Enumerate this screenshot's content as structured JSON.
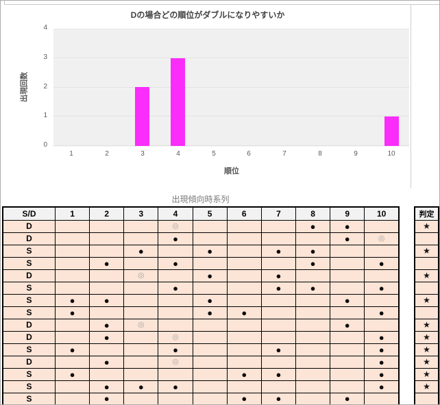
{
  "chart_data": {
    "type": "bar",
    "title": "Dの場合どの順位がダブルになりやすいか",
    "categories": [
      "1",
      "2",
      "3",
      "4",
      "5",
      "6",
      "7",
      "8",
      "9",
      "10"
    ],
    "values": [
      0,
      0,
      2,
      3,
      0,
      0,
      0,
      0,
      0,
      1
    ],
    "xlabel": "順位",
    "ylabel": "出現回数",
    "ylim": [
      0,
      4
    ],
    "yticks": [
      0,
      1,
      2,
      3,
      4
    ],
    "grid": "horizontal",
    "legend": "none"
  },
  "colors": {
    "bar": "#FA2DFA",
    "plot_background": "#F0F0F0",
    "table_row_background": "#FCE4D6",
    "table_header_background": "#F2F2F2",
    "chart_text": "#595959"
  },
  "symbols": {
    "filled_dot": "●",
    "double_circle": "◎",
    "star": "★"
  },
  "table": {
    "title": "出現傾向時系列",
    "columns": [
      "S/D",
      "1",
      "2",
      "3",
      "4",
      "5",
      "6",
      "7",
      "8",
      "9",
      "10"
    ],
    "judge_header": "判定",
    "rows": [
      {
        "sd": "D",
        "cells": [
          "",
          "",
          "",
          "◎",
          "",
          "",
          "",
          "●",
          "●",
          ""
        ],
        "judge": "★"
      },
      {
        "sd": "D",
        "cells": [
          "",
          "",
          "",
          "●",
          "",
          "",
          "",
          "",
          "●",
          "◎"
        ],
        "judge": ""
      },
      {
        "sd": "S",
        "cells": [
          "",
          "",
          "●",
          "",
          "●",
          "",
          "●",
          "●",
          "",
          ""
        ],
        "judge": "★"
      },
      {
        "sd": "S",
        "cells": [
          "",
          "●",
          "",
          "●",
          "",
          "",
          "",
          "●",
          "",
          "●"
        ],
        "judge": ""
      },
      {
        "sd": "D",
        "cells": [
          "",
          "",
          "◎",
          "",
          "●",
          "",
          "●",
          "",
          "",
          ""
        ],
        "judge": "★"
      },
      {
        "sd": "S",
        "cells": [
          "",
          "",
          "",
          "●",
          "",
          "",
          "●",
          "●",
          "",
          "●"
        ],
        "judge": ""
      },
      {
        "sd": "S",
        "cells": [
          "●",
          "●",
          "",
          "",
          "●",
          "",
          "",
          "",
          "●",
          ""
        ],
        "judge": "★"
      },
      {
        "sd": "S",
        "cells": [
          "●",
          "",
          "",
          "",
          "●",
          "●",
          "",
          "",
          "",
          "●"
        ],
        "judge": ""
      },
      {
        "sd": "D",
        "cells": [
          "",
          "●",
          "◎",
          "",
          "",
          "",
          "",
          "",
          "●",
          ""
        ],
        "judge": "★"
      },
      {
        "sd": "D",
        "cells": [
          "",
          "●",
          "",
          "◎",
          "",
          "",
          "",
          "",
          "",
          "●"
        ],
        "judge": "★"
      },
      {
        "sd": "S",
        "cells": [
          "●",
          "",
          "",
          "●",
          "",
          "",
          "●",
          "",
          "",
          "●"
        ],
        "judge": "★"
      },
      {
        "sd": "D",
        "cells": [
          "",
          "●",
          "",
          "◎",
          "",
          "",
          "",
          "",
          "",
          "●"
        ],
        "judge": "★"
      },
      {
        "sd": "S",
        "cells": [
          "●",
          "",
          "",
          "",
          "",
          "●",
          "●",
          "",
          "",
          "●"
        ],
        "judge": "★"
      },
      {
        "sd": "S",
        "cells": [
          "",
          "●",
          "●",
          "●",
          "",
          "",
          "",
          "",
          "",
          "●"
        ],
        "judge": "★"
      },
      {
        "sd": "S",
        "cells": [
          "",
          "●",
          "",
          "",
          "",
          "●",
          "●",
          "",
          "●",
          ""
        ],
        "judge": ""
      }
    ]
  }
}
